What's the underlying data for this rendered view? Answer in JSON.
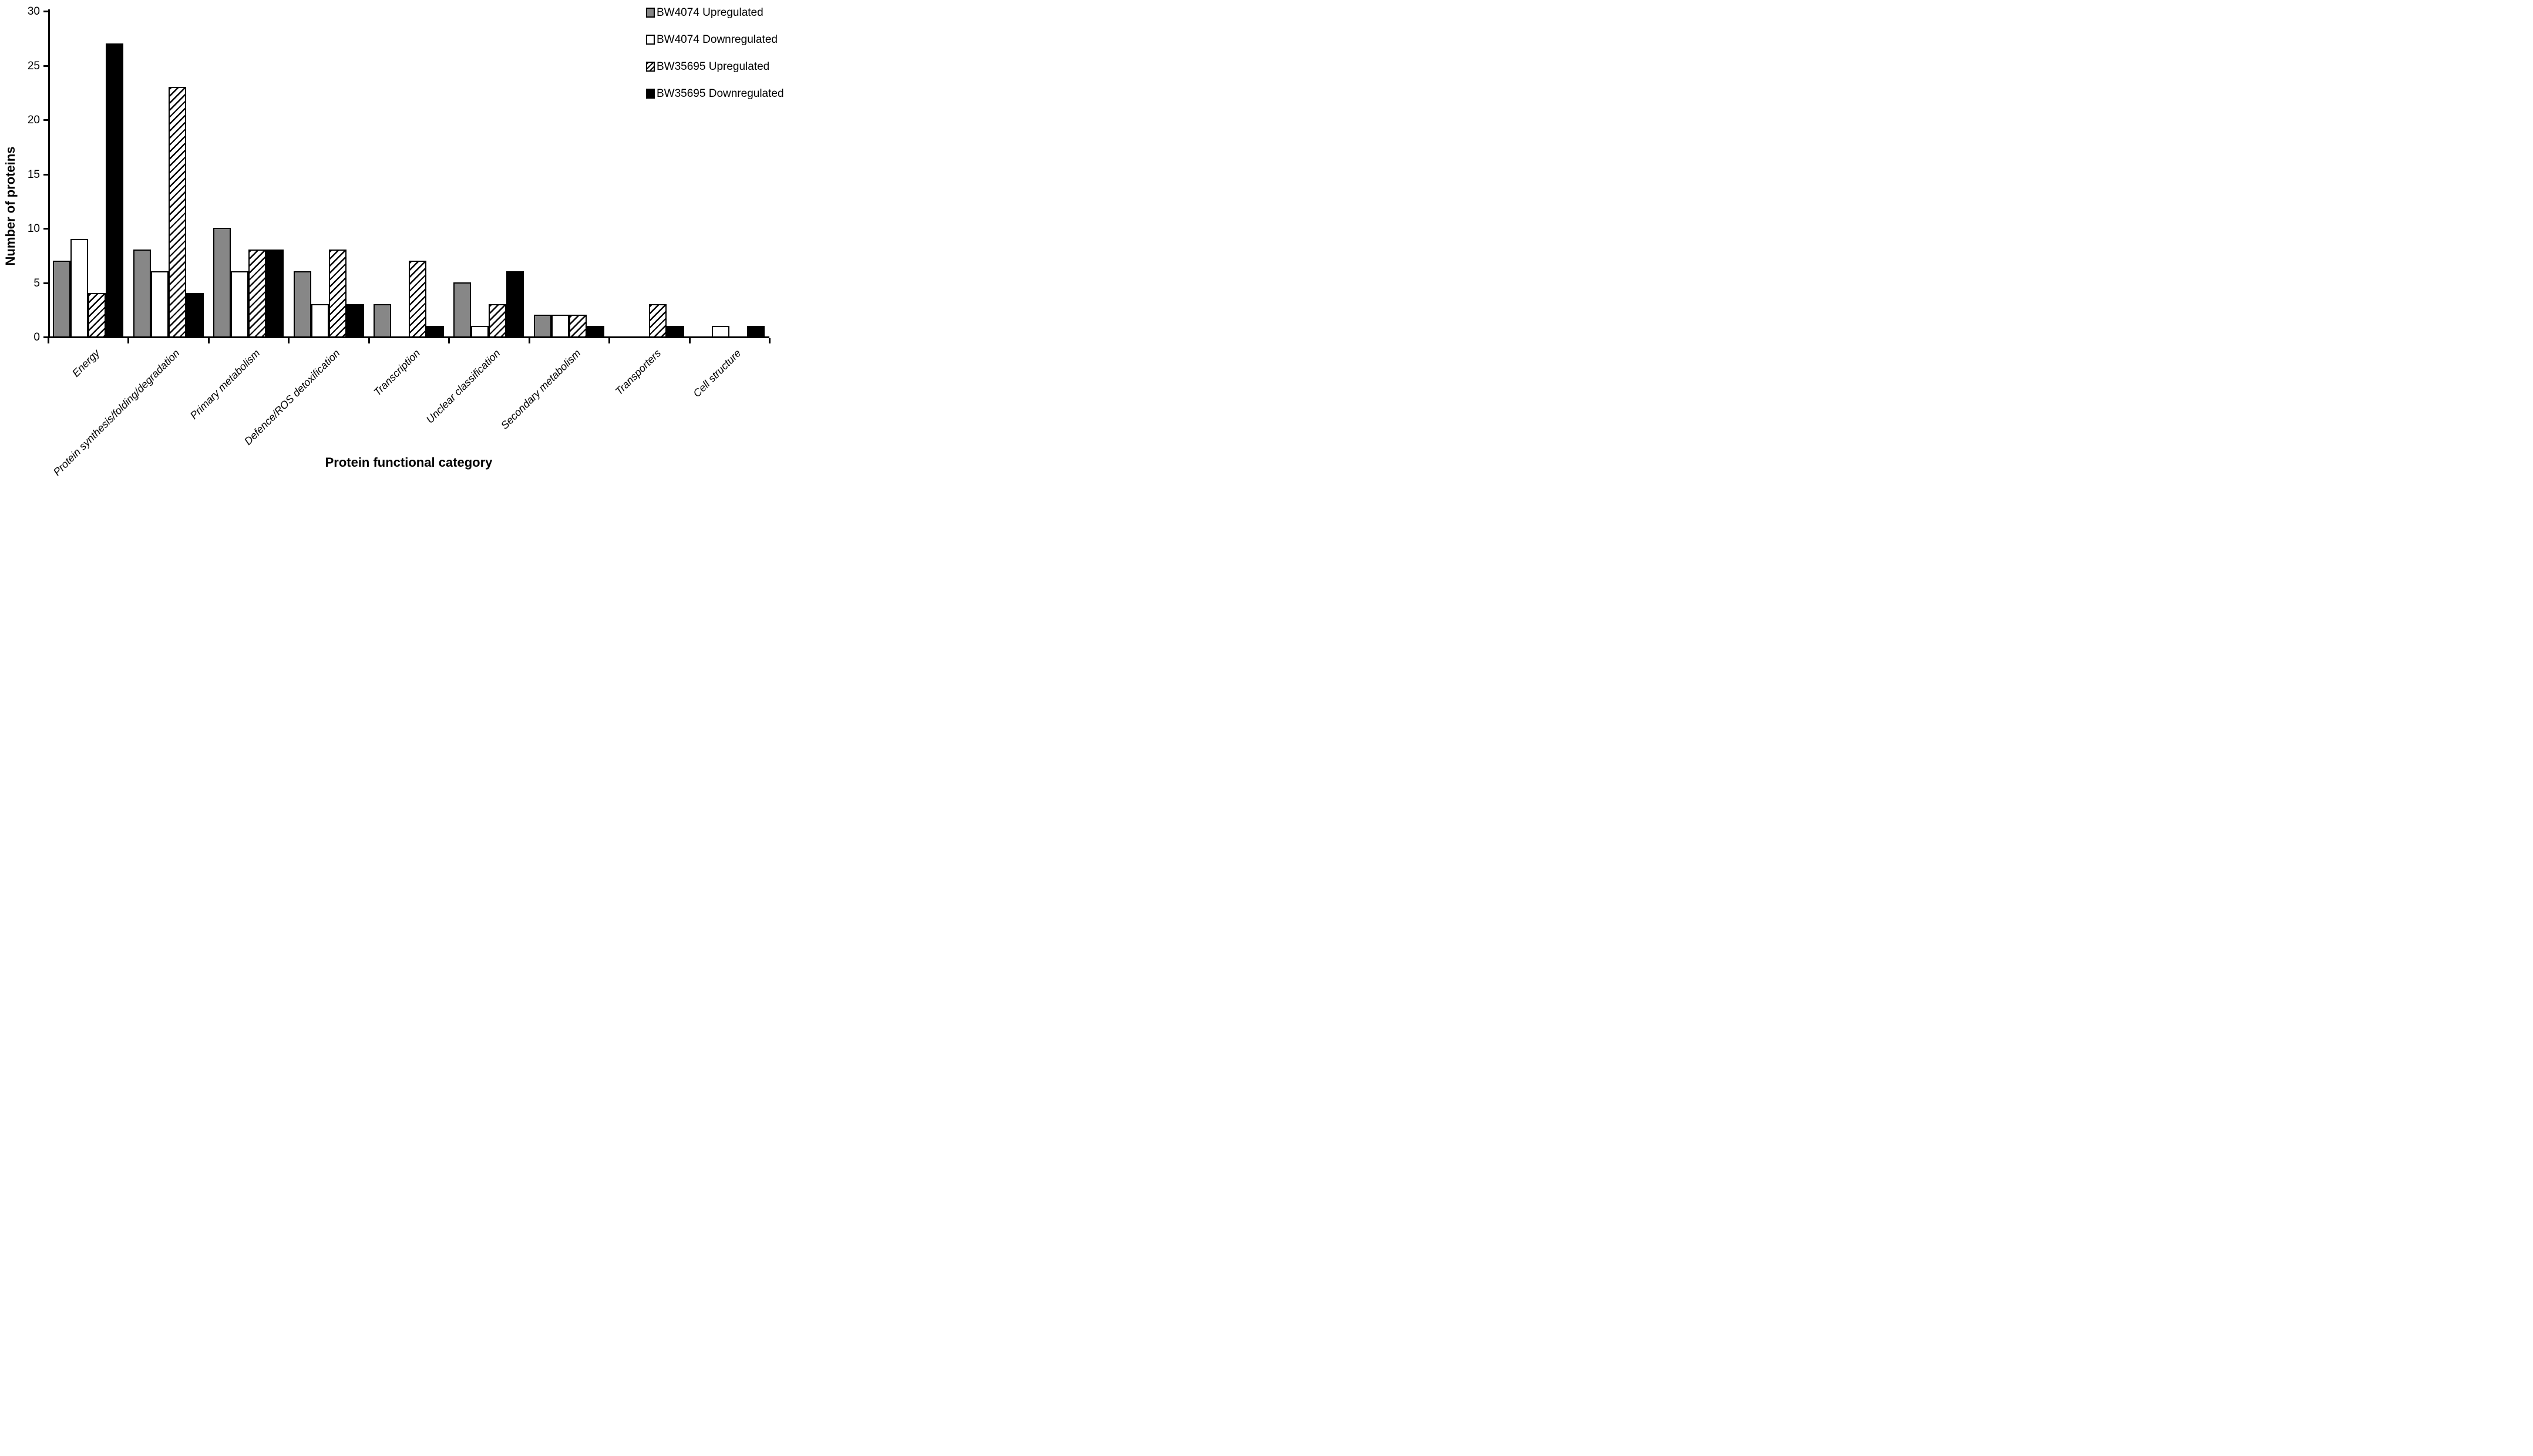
{
  "figure": {
    "y_axis_title": "Number of proteins",
    "x_axis_title": "Protein functional category"
  },
  "colors": {
    "bar_gray": "#878787",
    "bar_white": "#ffffff",
    "bar_black": "#000000",
    "outline": "#000000",
    "background": "#ffffff"
  },
  "legend": {
    "position": "top-right",
    "items": [
      {
        "label": "BW4074 Upregulated",
        "fill": "gray"
      },
      {
        "label": "BW4074 Downregulated",
        "fill": "white"
      },
      {
        "label": "BW35695 Upregulated",
        "fill": "hatch"
      },
      {
        "label": "BW35695 Downregulated",
        "fill": "black"
      }
    ]
  },
  "chart_data": {
    "type": "bar",
    "title": "",
    "xlabel": "Protein functional category",
    "ylabel": "Number of proteins",
    "ylim": [
      0,
      30
    ],
    "yticks": [
      0,
      5,
      10,
      15,
      20,
      25,
      30
    ],
    "grid": false,
    "legend_position": "top-right",
    "categories": [
      "Energy",
      "Protein synthesis/folding/degradation",
      "Primary metabolism",
      "Defence/ROS detoxification",
      "Transcription",
      "Unclear classification",
      "Secondary metabolism",
      "Transporters",
      "Cell structure"
    ],
    "series": [
      {
        "name": "BW4074 Upregulated",
        "fill": "gray",
        "values": [
          7,
          8,
          10,
          6,
          3,
          5,
          2,
          0,
          0
        ]
      },
      {
        "name": "BW4074 Downregulated",
        "fill": "white",
        "values": [
          9,
          6,
          6,
          3,
          0,
          1,
          2,
          0,
          1
        ]
      },
      {
        "name": "BW35695 Upregulated",
        "fill": "hatch",
        "values": [
          4,
          23,
          8,
          8,
          7,
          3,
          2,
          3,
          0
        ]
      },
      {
        "name": "BW35695 Downregulated",
        "fill": "black",
        "values": [
          27,
          4,
          8,
          3,
          1,
          6,
          1,
          1,
          1
        ]
      }
    ]
  }
}
